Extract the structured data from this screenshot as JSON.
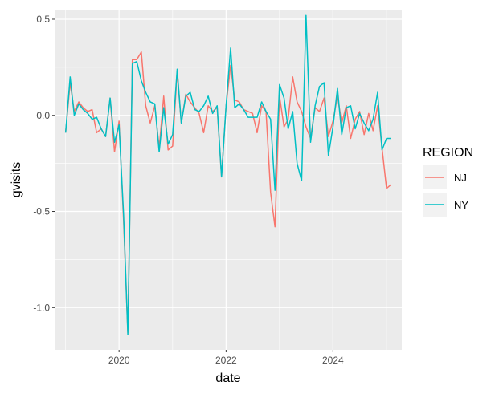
{
  "chart_data": {
    "type": "line",
    "title": "",
    "xlabel": "date",
    "ylabel": "gvisits",
    "x_tick_labels": [
      "2020",
      "2022",
      "2024"
    ],
    "y_tick_labels": [
      "0.5",
      "0.0",
      "-0.5",
      "-1.0"
    ],
    "xlim": [
      "2018-10-18",
      "2025-04-15"
    ],
    "ylim": [
      -1.22,
      0.55
    ],
    "grid": true,
    "background": "#ebebeb",
    "legend": {
      "title": "REGION",
      "position": "right"
    },
    "dates": [
      "2019-01-01",
      "2019-02-01",
      "2019-03-01",
      "2019-04-01",
      "2019-05-01",
      "2019-06-01",
      "2019-07-01",
      "2019-08-01",
      "2019-09-01",
      "2019-10-01",
      "2019-11-01",
      "2019-12-01",
      "2020-01-01",
      "2020-02-01",
      "2020-03-01",
      "2020-04-01",
      "2020-05-01",
      "2020-06-01",
      "2020-07-01",
      "2020-08-01",
      "2020-09-01",
      "2020-10-01",
      "2020-11-01",
      "2020-12-01",
      "2021-01-01",
      "2021-02-01",
      "2021-03-01",
      "2021-04-01",
      "2021-05-01",
      "2021-06-01",
      "2021-07-01",
      "2021-08-01",
      "2021-09-01",
      "2021-10-01",
      "2021-11-01",
      "2021-12-01",
      "2022-01-01",
      "2022-02-01",
      "2022-03-01",
      "2022-04-01",
      "2022-05-01",
      "2022-06-01",
      "2022-07-01",
      "2022-08-01",
      "2022-09-01",
      "2022-10-01",
      "2022-11-01",
      "2022-12-01",
      "2023-01-01",
      "2023-02-01",
      "2023-03-01",
      "2023-04-01",
      "2023-05-01",
      "2023-06-01",
      "2023-07-01",
      "2023-08-01",
      "2023-09-01",
      "2023-10-01",
      "2023-11-01",
      "2023-12-01",
      "2024-01-01",
      "2024-02-01",
      "2024-03-01",
      "2024-04-01",
      "2024-05-01",
      "2024-06-01",
      "2024-07-01",
      "2024-08-01",
      "2024-09-01",
      "2024-10-01",
      "2024-11-01",
      "2024-12-01",
      "2025-01-01",
      "2025-02-01"
    ],
    "series": [
      {
        "name": "NJ",
        "color": "#f8766d",
        "values": [
          -0.09,
          0.17,
          0.02,
          0.07,
          0.04,
          0.02,
          0.03,
          -0.09,
          -0.07,
          -0.11,
          0.09,
          -0.19,
          -0.03,
          -0.55,
          -1.13,
          0.29,
          0.29,
          0.33,
          0.05,
          -0.04,
          0.05,
          -0.17,
          0.1,
          -0.18,
          -0.16,
          0.23,
          -0.04,
          0.11,
          0.07,
          0.04,
          0.01,
          -0.09,
          0.05,
          0.02,
          0.04,
          -0.32,
          0.05,
          0.26,
          0.08,
          0.07,
          0.03,
          0.02,
          0.01,
          -0.09,
          0.05,
          0.02,
          -0.4,
          -0.58,
          0.1,
          -0.06,
          -0.02,
          0.2,
          0.07,
          0.02,
          -0.06,
          -0.12,
          0.04,
          0.02,
          0.09,
          -0.11,
          -0.03,
          0.1,
          -0.04,
          0.05,
          -0.12,
          -0.02,
          0.02,
          -0.1,
          0.01,
          -0.08,
          0.05,
          -0.17,
          -0.38,
          -0.36
        ]
      },
      {
        "name": "NY",
        "color": "#00bfc4",
        "values": [
          -0.09,
          0.2,
          0.0,
          0.06,
          0.03,
          0.01,
          -0.02,
          -0.01,
          -0.07,
          -0.11,
          0.09,
          -0.14,
          -0.05,
          -0.52,
          -1.14,
          0.27,
          0.28,
          0.18,
          0.12,
          0.07,
          0.06,
          -0.19,
          0.04,
          -0.15,
          -0.1,
          0.24,
          -0.04,
          0.1,
          0.12,
          0.03,
          0.02,
          0.05,
          0.1,
          0.01,
          0.05,
          -0.32,
          0.05,
          0.35,
          0.04,
          0.06,
          0.03,
          -0.01,
          -0.01,
          -0.01,
          0.07,
          0.02,
          -0.02,
          -0.39,
          0.16,
          0.09,
          -0.07,
          0.02,
          -0.25,
          -0.34,
          0.52,
          -0.14,
          0.05,
          0.15,
          0.17,
          -0.21,
          -0.06,
          0.14,
          -0.1,
          0.04,
          0.05,
          -0.07,
          0.01,
          -0.04,
          -0.08,
          -0.02,
          0.12,
          -0.18,
          -0.12,
          -0.12
        ]
      }
    ]
  }
}
